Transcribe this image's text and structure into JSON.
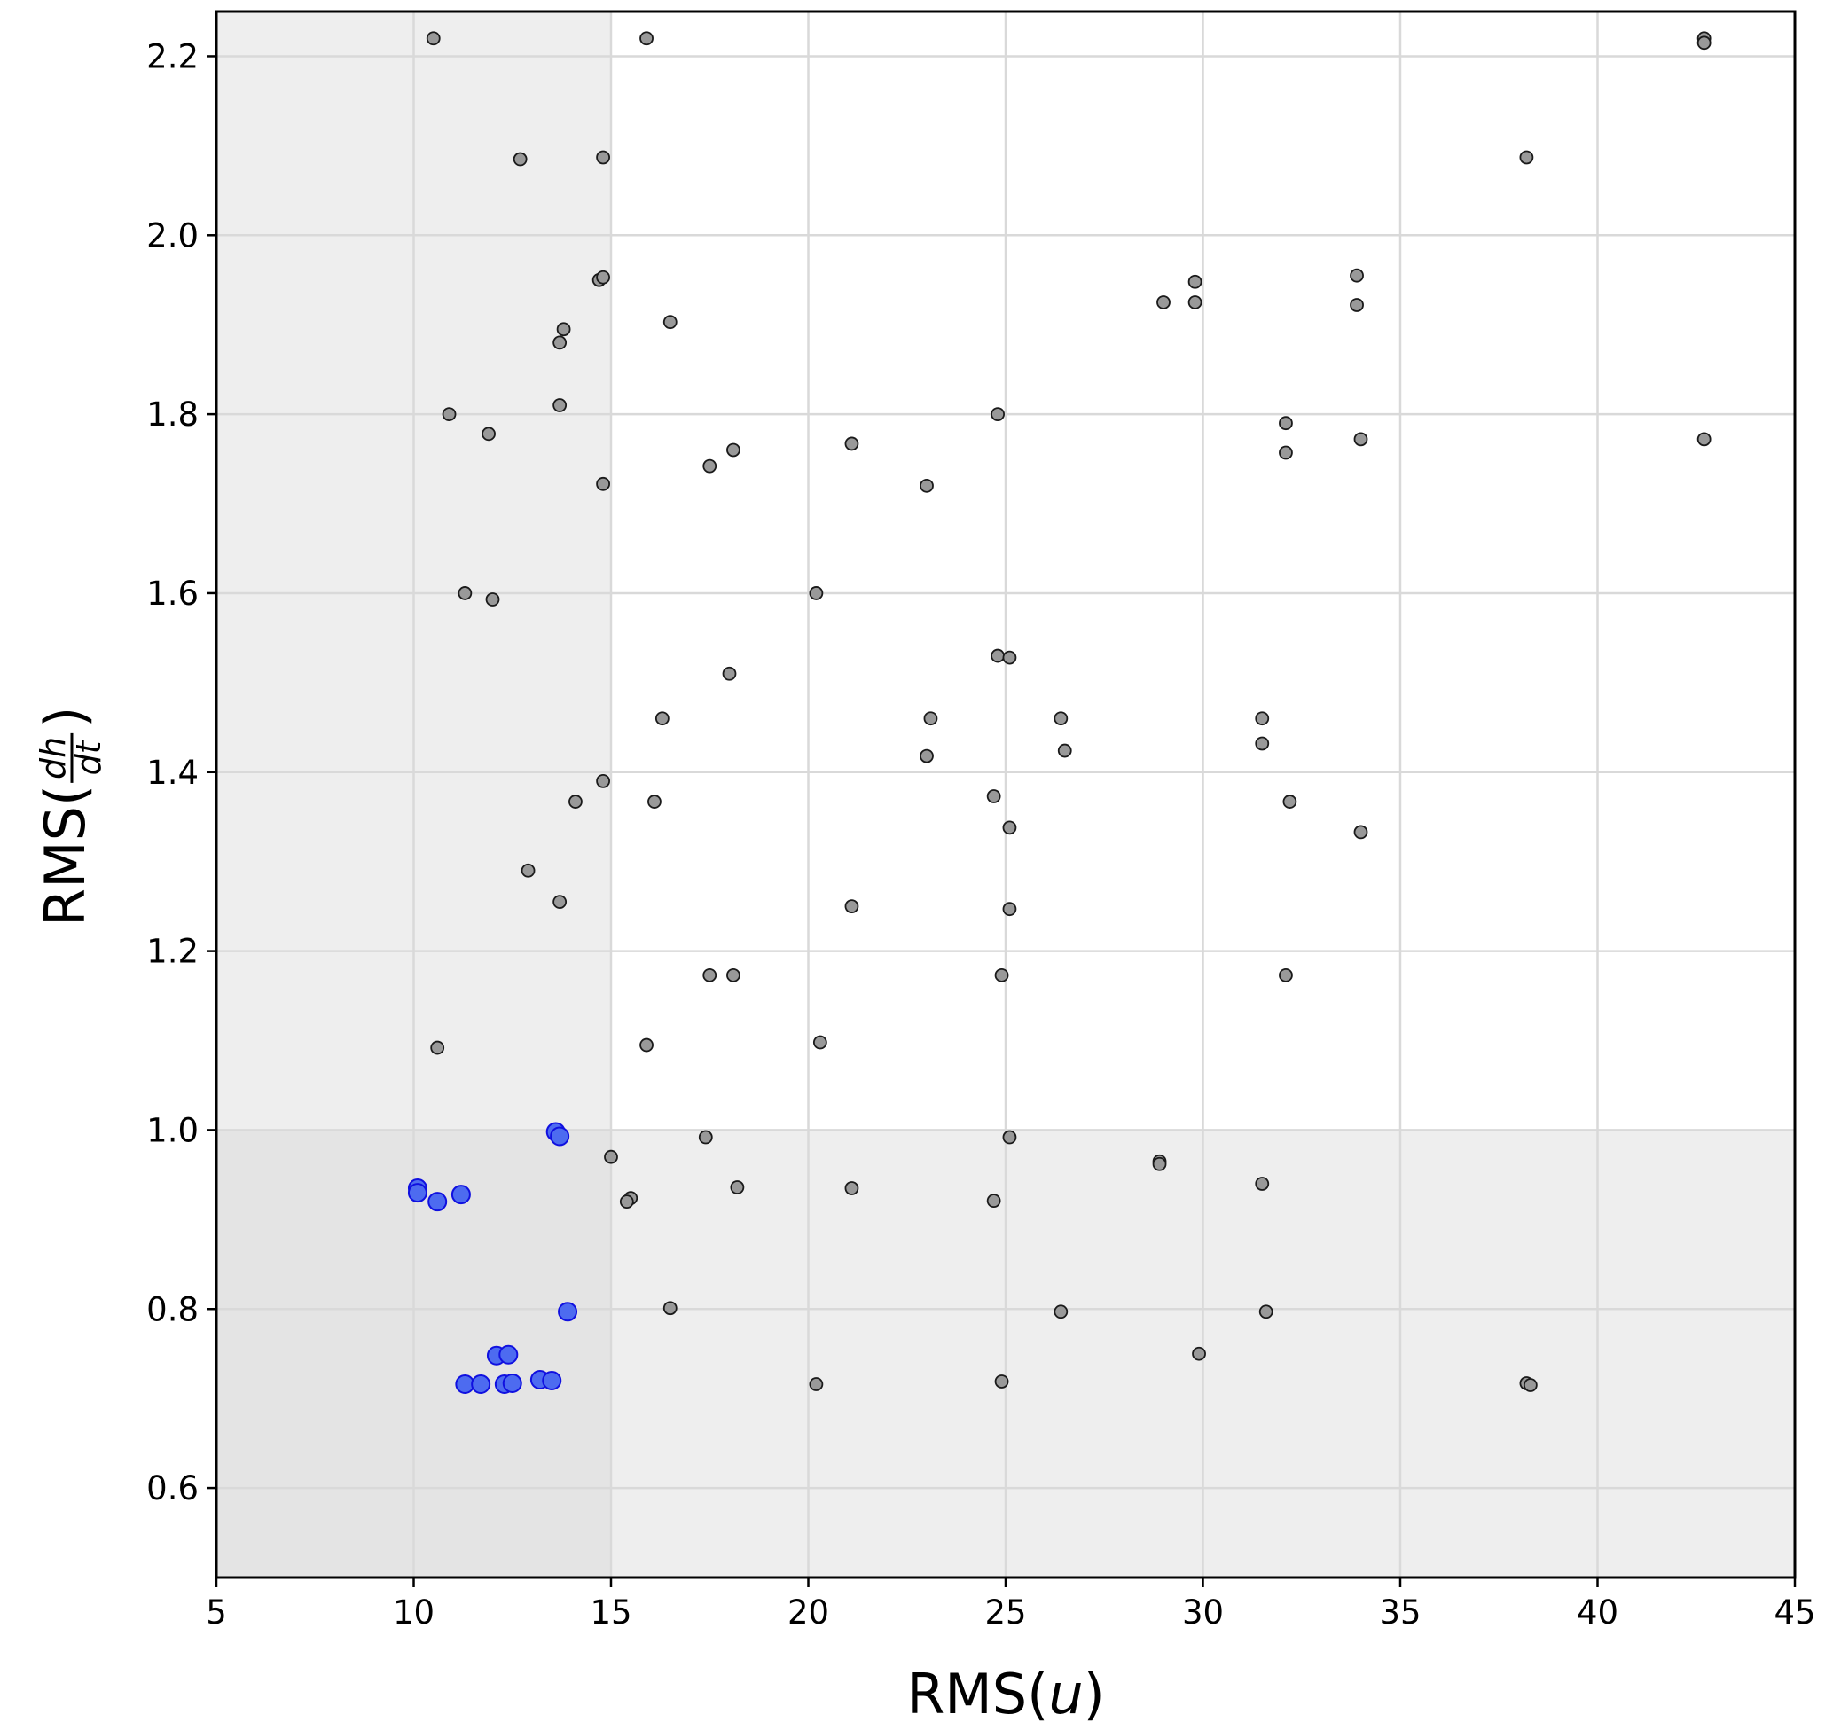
{
  "chart_data": {
    "type": "scatter",
    "title": "",
    "xlabel": "RMS(u)",
    "xlabel_parts": {
      "prefix": "RMS(",
      "var": "u",
      "suffix": ")"
    },
    "ylabel": "RMS(dh/dt)",
    "ylabel_parts": {
      "prefix": "RMS(",
      "num": "dh",
      "den": "dt",
      "suffix": ")"
    },
    "xlim": [
      5,
      45
    ],
    "ylim": [
      0.5,
      2.25
    ],
    "xticks": [
      5,
      10,
      15,
      20,
      25,
      30,
      35,
      40,
      45
    ],
    "yticks": [
      0.6,
      0.8,
      1.0,
      1.2,
      1.4,
      1.6,
      1.8,
      2.0,
      2.2
    ],
    "ytick_format": 1,
    "grid": true,
    "shaded_regions": {
      "x_max": 15,
      "y_max": 1.0,
      "fill_single": "#eeeeee",
      "fill_overlap": "#e4e4e4"
    },
    "series": [
      {
        "marker_fill": "#999999",
        "marker_edge": "#1a1a1a",
        "marker_size": "small",
        "points": [
          [
            10.5,
            2.22
          ],
          [
            15.9,
            2.22
          ],
          [
            42.7,
            2.22
          ],
          [
            42.7,
            2.215
          ],
          [
            12.7,
            2.085
          ],
          [
            14.8,
            2.087
          ],
          [
            38.2,
            2.087
          ],
          [
            14.7,
            1.95
          ],
          [
            14.8,
            1.953
          ],
          [
            16.5,
            1.903
          ],
          [
            13.8,
            1.895
          ],
          [
            13.7,
            1.88
          ],
          [
            29.0,
            1.925
          ],
          [
            29.8,
            1.948
          ],
          [
            29.8,
            1.925
          ],
          [
            33.9,
            1.955
          ],
          [
            33.9,
            1.922
          ],
          [
            13.7,
            1.81
          ],
          [
            10.9,
            1.8
          ],
          [
            11.9,
            1.778
          ],
          [
            24.8,
            1.8
          ],
          [
            32.1,
            1.79
          ],
          [
            32.1,
            1.757
          ],
          [
            34.0,
            1.772
          ],
          [
            42.7,
            1.772
          ],
          [
            21.1,
            1.767
          ],
          [
            18.1,
            1.76
          ],
          [
            17.5,
            1.742
          ],
          [
            14.8,
            1.722
          ],
          [
            23.0,
            1.72
          ],
          [
            11.3,
            1.6
          ],
          [
            12.0,
            1.593
          ],
          [
            20.2,
            1.6
          ],
          [
            24.8,
            1.53
          ],
          [
            25.1,
            1.528
          ],
          [
            18.0,
            1.51
          ],
          [
            16.3,
            1.46
          ],
          [
            23.1,
            1.46
          ],
          [
            26.4,
            1.46
          ],
          [
            31.5,
            1.46
          ],
          [
            31.5,
            1.432
          ],
          [
            26.5,
            1.424
          ],
          [
            23.0,
            1.418
          ],
          [
            14.8,
            1.39
          ],
          [
            24.7,
            1.373
          ],
          [
            14.1,
            1.367
          ],
          [
            16.1,
            1.367
          ],
          [
            32.2,
            1.367
          ],
          [
            25.1,
            1.338
          ],
          [
            34.0,
            1.333
          ],
          [
            12.9,
            1.29
          ],
          [
            13.7,
            1.255
          ],
          [
            21.1,
            1.25
          ],
          [
            25.1,
            1.247
          ],
          [
            17.5,
            1.173
          ],
          [
            18.1,
            1.173
          ],
          [
            24.9,
            1.173
          ],
          [
            32.1,
            1.173
          ],
          [
            10.6,
            1.092
          ],
          [
            15.9,
            1.095
          ],
          [
            20.3,
            1.098
          ],
          [
            17.4,
            0.992
          ],
          [
            25.1,
            0.992
          ],
          [
            15.0,
            0.97
          ],
          [
            28.9,
            0.965
          ],
          [
            28.9,
            0.962
          ],
          [
            31.5,
            0.94
          ],
          [
            18.2,
            0.936
          ],
          [
            21.1,
            0.935
          ],
          [
            15.5,
            0.924
          ],
          [
            15.4,
            0.92
          ],
          [
            24.7,
            0.921
          ],
          [
            16.5,
            0.801
          ],
          [
            26.4,
            0.797
          ],
          [
            31.6,
            0.797
          ],
          [
            29.9,
            0.75
          ],
          [
            20.2,
            0.716
          ],
          [
            24.9,
            0.719
          ],
          [
            38.2,
            0.717
          ],
          [
            38.3,
            0.715
          ]
        ]
      },
      {
        "marker_fill": "#4d6bf0",
        "marker_edge": "#1010e0",
        "marker_size": "large",
        "points": [
          [
            13.6,
            0.998
          ],
          [
            13.7,
            0.993
          ],
          [
            10.1,
            0.935
          ],
          [
            10.1,
            0.93
          ],
          [
            10.6,
            0.92
          ],
          [
            11.2,
            0.928
          ],
          [
            13.9,
            0.797
          ],
          [
            12.1,
            0.748
          ],
          [
            12.4,
            0.749
          ],
          [
            11.3,
            0.716
          ],
          [
            11.7,
            0.716
          ],
          [
            12.3,
            0.716
          ],
          [
            12.5,
            0.717
          ],
          [
            13.2,
            0.721
          ],
          [
            13.5,
            0.72
          ]
        ]
      }
    ]
  }
}
